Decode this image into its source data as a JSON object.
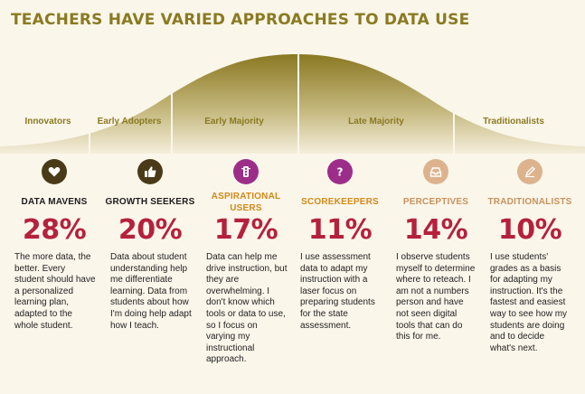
{
  "title": "TEACHERS HAVE VARIED APPROACHES TO DATA USE",
  "segments": [
    "Innovators",
    "Early Adopters",
    "Early Majority",
    "Late Majority",
    "Traditionalists"
  ],
  "columns": [
    {
      "category": "DATA MAVENS",
      "percent": "28%",
      "icon": "heart-icon",
      "description": "The more data, the better. Every student should have a personalized learning plan, adapted to the whole student."
    },
    {
      "category": "GROWTH SEEKERS",
      "percent": "20%",
      "icon": "thumbs-up-icon",
      "description": "Data about student understanding help me differentiate learning. Data from students about how I'm doing help adapt how I teach."
    },
    {
      "category": "ASPIRATIONAL USERS",
      "percent": "17%",
      "icon": "traffic-light-icon",
      "description": "Data can help me drive instruction, but they are overwhelming. I don't know which tools or data to use, so I focus on varying my instructional approach."
    },
    {
      "category": "SCOREKEEPERS",
      "percent": "11%",
      "icon": "question-icon",
      "description": "I use assessment data to adapt my instruction with a laser focus on preparing students for the state assessment."
    },
    {
      "category": "PERCEPTIVES",
      "percent": "14%",
      "icon": "inbox-icon",
      "description": "I observe students myself to determine where to reteach. I am not a numbers person and have not seen digital tools that can do this for me."
    },
    {
      "category": "TRADITIONALISTS",
      "percent": "10%",
      "icon": "pencil-icon",
      "description": "I use students' grades as a basis for adapting my instruction. It's the fastest and easiest way to see how my students are doing and to decide what's next."
    }
  ],
  "colors": {
    "title": "#8a7a22",
    "curve_dark": "#8a7822",
    "curve_light": "#efe7d3",
    "percent": "#b5213d",
    "purple": "#9c2e8a",
    "peach": "#ddb38e",
    "dark_icon": "#4a3a18"
  }
}
